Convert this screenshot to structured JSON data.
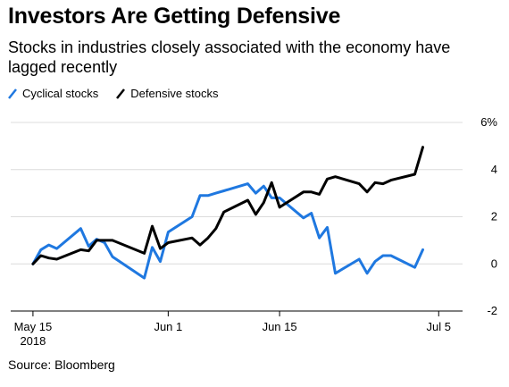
{
  "title": "Investors Are Getting Defensive",
  "subtitle": "Stocks in industries closely associated with the economy have lagged recently",
  "source": "Source: Bloomberg",
  "colors": {
    "cyclical": "#1f78e0",
    "defensive": "#000000",
    "grid": "#dcdcdc"
  },
  "chart_data": {
    "type": "line",
    "title": "Investors Are Getting Defensive",
    "subtitle": "Stocks in industries closely associated with the economy have lagged recently",
    "xlabel": "",
    "ylabel": "",
    "ylim": [
      -2,
      6
    ],
    "xlim": [
      "2018-05-14",
      "2018-07-08"
    ],
    "grid": true,
    "legend": "top-left",
    "x_ticks": [
      {
        "date": "2018-05-15",
        "label": "May 15",
        "sublabel": "2018"
      },
      {
        "date": "2018-06-01",
        "label": "Jun 1",
        "sublabel": ""
      },
      {
        "date": "2018-06-15",
        "label": "Jun 15",
        "sublabel": ""
      },
      {
        "date": "2018-07-05",
        "label": "Jul 5",
        "sublabel": ""
      }
    ],
    "y_ticks": [
      {
        "value": 6,
        "label": "6%"
      },
      {
        "value": 4,
        "label": "4"
      },
      {
        "value": 2,
        "label": "2"
      },
      {
        "value": 0,
        "label": "0"
      },
      {
        "value": -2,
        "label": "-2"
      }
    ],
    "series": [
      {
        "name": "Cyclical stocks",
        "color": "#1f78e0",
        "points": [
          [
            "2018-05-15",
            0.0
          ],
          [
            "2018-05-16",
            0.6
          ],
          [
            "2018-05-17",
            0.8
          ],
          [
            "2018-05-18",
            0.65
          ],
          [
            "2018-05-21",
            1.5
          ],
          [
            "2018-05-22",
            0.75
          ],
          [
            "2018-05-23",
            1.05
          ],
          [
            "2018-05-24",
            0.9
          ],
          [
            "2018-05-25",
            0.3
          ],
          [
            "2018-05-29",
            -0.6
          ],
          [
            "2018-05-30",
            0.7
          ],
          [
            "2018-05-31",
            0.1
          ],
          [
            "2018-06-01",
            1.35
          ],
          [
            "2018-06-04",
            2.0
          ],
          [
            "2018-06-05",
            2.9
          ],
          [
            "2018-06-06",
            2.9
          ],
          [
            "2018-06-07",
            3.0
          ],
          [
            "2018-06-08",
            3.1
          ],
          [
            "2018-06-11",
            3.4
          ],
          [
            "2018-06-12",
            3.0
          ],
          [
            "2018-06-13",
            3.3
          ],
          [
            "2018-06-14",
            2.8
          ],
          [
            "2018-06-15",
            2.8
          ],
          [
            "2018-06-18",
            1.95
          ],
          [
            "2018-06-19",
            2.15
          ],
          [
            "2018-06-20",
            1.1
          ],
          [
            "2018-06-21",
            1.55
          ],
          [
            "2018-06-22",
            -0.4
          ],
          [
            "2018-06-25",
            0.2
          ],
          [
            "2018-06-26",
            -0.4
          ],
          [
            "2018-06-27",
            0.1
          ],
          [
            "2018-06-28",
            0.35
          ],
          [
            "2018-06-29",
            0.35
          ],
          [
            "2018-07-02",
            -0.15
          ],
          [
            "2018-07-03",
            0.6
          ]
        ]
      },
      {
        "name": "Defensive stocks",
        "color": "#000000",
        "points": [
          [
            "2018-05-15",
            0.0
          ],
          [
            "2018-05-16",
            0.35
          ],
          [
            "2018-05-17",
            0.25
          ],
          [
            "2018-05-18",
            0.2
          ],
          [
            "2018-05-21",
            0.6
          ],
          [
            "2018-05-22",
            0.55
          ],
          [
            "2018-05-23",
            1.0
          ],
          [
            "2018-05-24",
            1.0
          ],
          [
            "2018-05-25",
            1.0
          ],
          [
            "2018-05-29",
            0.45
          ],
          [
            "2018-05-30",
            1.6
          ],
          [
            "2018-05-31",
            0.65
          ],
          [
            "2018-06-01",
            0.9
          ],
          [
            "2018-06-04",
            1.1
          ],
          [
            "2018-06-05",
            0.8
          ],
          [
            "2018-06-06",
            1.1
          ],
          [
            "2018-06-07",
            1.5
          ],
          [
            "2018-06-08",
            2.2
          ],
          [
            "2018-06-11",
            2.7
          ],
          [
            "2018-06-12",
            2.1
          ],
          [
            "2018-06-13",
            2.6
          ],
          [
            "2018-06-14",
            3.45
          ],
          [
            "2018-06-15",
            2.4
          ],
          [
            "2018-06-18",
            3.05
          ],
          [
            "2018-06-19",
            3.05
          ],
          [
            "2018-06-20",
            2.95
          ],
          [
            "2018-06-21",
            3.6
          ],
          [
            "2018-06-22",
            3.7
          ],
          [
            "2018-06-25",
            3.4
          ],
          [
            "2018-06-26",
            3.05
          ],
          [
            "2018-06-27",
            3.45
          ],
          [
            "2018-06-28",
            3.4
          ],
          [
            "2018-06-29",
            3.55
          ],
          [
            "2018-07-02",
            3.8
          ],
          [
            "2018-07-03",
            4.95
          ]
        ]
      }
    ]
  }
}
